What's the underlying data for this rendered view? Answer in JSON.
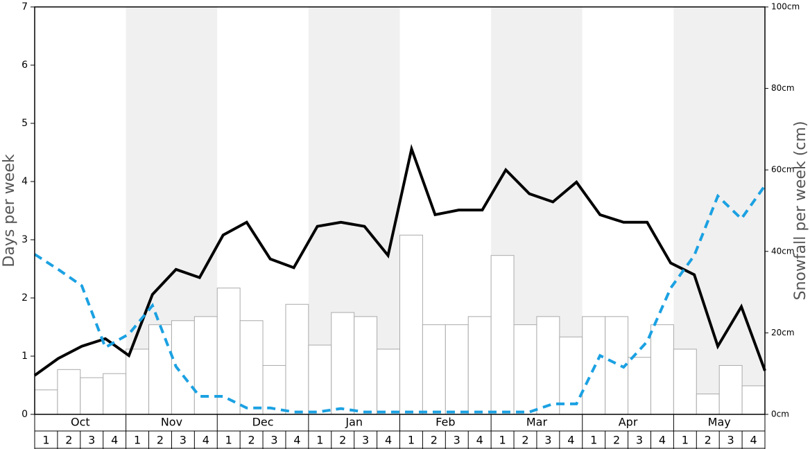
{
  "chart_data": {
    "type": "bar",
    "ylabel": "Days per week",
    "y2label": "Snowfall per week (cm)",
    "categories": [
      "1",
      "2",
      "3",
      "4",
      "1",
      "2",
      "3",
      "4",
      "1",
      "2",
      "3",
      "4",
      "1",
      "2",
      "3",
      "4",
      "1",
      "2",
      "3",
      "4",
      "1",
      "2",
      "3",
      "4",
      "1",
      "2",
      "3",
      "4",
      "1",
      "2",
      "3",
      "4"
    ],
    "months": [
      "Oct",
      "Nov",
      "Dec",
      "Jan",
      "Feb",
      "Mar",
      "Apr",
      "May"
    ],
    "month_shading": [
      "#ffffff",
      "#f0f0f0"
    ],
    "series": [
      {
        "type": "bar",
        "axis": "y2",
        "color": "#ffffff",
        "values": [
          6,
          11,
          9,
          10,
          16,
          22,
          23,
          24,
          31,
          23,
          12,
          27,
          17,
          25,
          24,
          16,
          44,
          22,
          22,
          24,
          39,
          22,
          24,
          19,
          24,
          24,
          14,
          22,
          16,
          5,
          12,
          7
        ]
      },
      {
        "type": "line",
        "color": "#000000",
        "values": [
          0.67,
          0.96,
          1.17,
          1.3,
          1.01,
          2.06,
          2.49,
          2.35,
          3.08,
          3.3,
          2.67,
          2.52,
          3.23,
          3.3,
          3.23,
          2.73,
          4.56,
          3.43,
          3.51,
          3.51,
          4.2,
          3.79,
          3.65,
          3.99,
          3.43,
          3.3,
          3.3,
          2.6,
          2.4,
          1.17,
          1.85,
          0.75
        ]
      },
      {
        "type": "line",
        "color": "#1ba1e2",
        "dashed": true,
        "values": [
          2.75,
          2.49,
          2.21,
          1.15,
          1.38,
          1.87,
          0.82,
          0.31,
          0.31,
          0.11,
          0.11,
          0.04,
          0.04,
          0.1,
          0.04,
          0.04,
          0.04,
          0.04,
          0.04,
          0.04,
          0.04,
          0.04,
          0.18,
          0.18,
          1.01,
          0.81,
          1.25,
          2.17,
          2.73,
          3.75,
          3.36,
          3.93
        ]
      }
    ],
    "ylim": [
      0,
      7
    ],
    "yticks": [
      0,
      1,
      2,
      3,
      4,
      5,
      6,
      7
    ],
    "y2lim": [
      0,
      100
    ],
    "y2ticks": [
      {
        "value": 0,
        "label": "0cm"
      },
      {
        "value": 20,
        "label": "20cm"
      },
      {
        "value": 40,
        "label": "40cm"
      },
      {
        "value": 60,
        "label": "60cm"
      },
      {
        "value": 80,
        "label": "80cm"
      },
      {
        "value": 100,
        "label": "100cm"
      }
    ]
  }
}
